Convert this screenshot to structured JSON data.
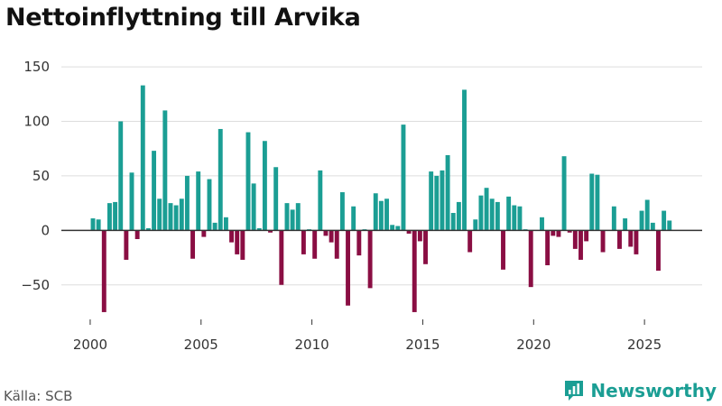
{
  "title": "Nettoinflyttning till Arvika",
  "source": "Källa: SCB",
  "brand": {
    "name": "Newsworthy"
  },
  "colors": {
    "positive": "#1b9e94",
    "negative": "#8a0e43",
    "grid": "#dddddd",
    "axis": "#333333"
  },
  "chart_data": {
    "type": "bar",
    "title": "Nettoinflyttning till Arvika",
    "xlabel": "",
    "ylabel": "",
    "ylim": [
      -80,
      160
    ],
    "xlim": [
      1998.7,
      2027.6
    ],
    "y_ticks": [
      -50,
      0,
      50,
      100,
      150
    ],
    "x_ticks": [
      2000,
      2005,
      2010,
      2015,
      2020,
      2025
    ],
    "grid": true,
    "x_start": 2000.125,
    "x_step": 0.25,
    "values": [
      11,
      10,
      -75,
      25,
      26,
      100,
      -27,
      53,
      -8,
      133,
      2,
      73,
      29,
      110,
      25,
      23,
      29,
      50,
      -26,
      54,
      -6,
      47,
      7,
      93,
      12,
      -11,
      -22,
      -27,
      90,
      43,
      2,
      82,
      -2,
      58,
      -50,
      25,
      19,
      25,
      -22,
      1,
      -26,
      55,
      -5,
      -11,
      -26,
      35,
      -69,
      22,
      -23,
      1,
      -53,
      34,
      27,
      29,
      5,
      4,
      97,
      -3,
      -75,
      -10,
      -31,
      54,
      50,
      55,
      69,
      16,
      26,
      129,
      -20,
      10,
      32,
      39,
      29,
      26,
      -36,
      31,
      23,
      22,
      1,
      -52,
      0,
      12,
      -32,
      -5,
      -6,
      68,
      -2,
      -17,
      -27,
      -10,
      52,
      51,
      -20,
      0,
      22,
      -17,
      11,
      -15,
      -22,
      18,
      28,
      7,
      -37,
      18,
      9
    ]
  }
}
